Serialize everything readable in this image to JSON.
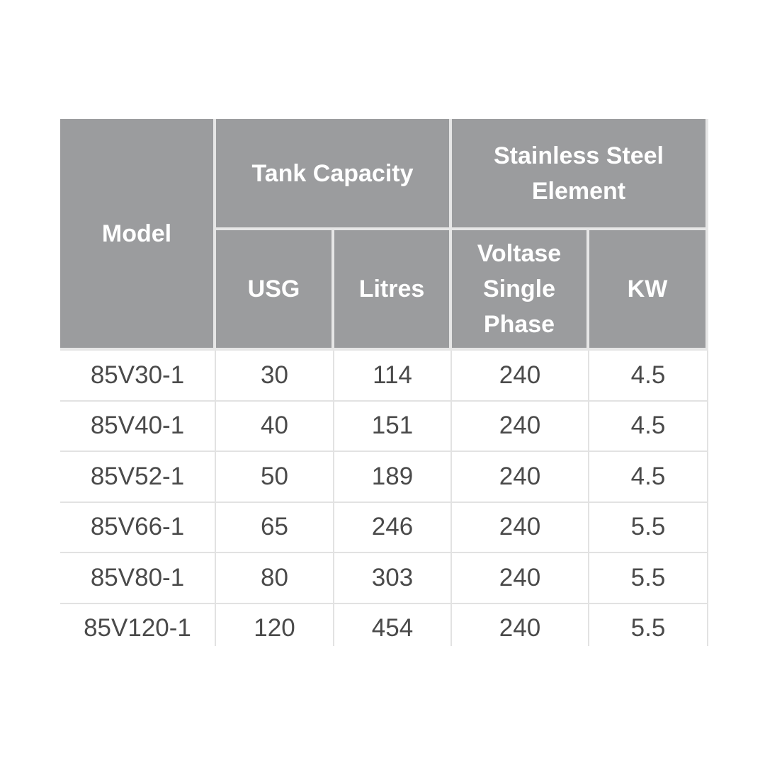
{
  "table": {
    "header": {
      "model": "Model",
      "tank_capacity": "Tank Capacity",
      "element": "Stainless Steel Element",
      "columns": [
        "USG",
        "Litres",
        "Voltase Single Phase",
        "KW"
      ]
    },
    "rows": [
      [
        "85V30-1",
        "30",
        "114",
        "240",
        "4.5"
      ],
      [
        "85V40-1",
        "40",
        "151",
        "240",
        "4.5"
      ],
      [
        "85V52-1",
        "50",
        "189",
        "240",
        "4.5"
      ],
      [
        "85V66-1",
        "65",
        "246",
        "240",
        "5.5"
      ],
      [
        "85V80-1",
        "80",
        "303",
        "240",
        "5.5"
      ],
      [
        "85V120-1",
        "120",
        "454",
        "240",
        "5.5"
      ]
    ]
  }
}
